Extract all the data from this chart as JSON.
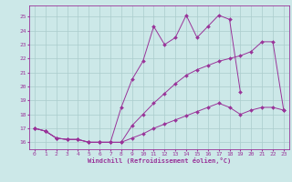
{
  "background_color": "#cce8e8",
  "grid_color": "#aacccc",
  "line_color": "#993399",
  "xlim_min": -0.5,
  "xlim_max": 23.5,
  "ylim_min": 15.5,
  "ylim_max": 25.8,
  "yticks": [
    16,
    17,
    18,
    19,
    20,
    21,
    22,
    23,
    24,
    25
  ],
  "xticks": [
    0,
    1,
    2,
    3,
    4,
    5,
    6,
    7,
    8,
    9,
    10,
    11,
    12,
    13,
    14,
    15,
    16,
    17,
    18,
    19,
    20,
    21,
    22,
    23
  ],
  "xlabel": "Windchill (Refroidissement éolien,°C)",
  "series": [
    {
      "x": [
        0,
        1,
        2,
        3,
        4,
        5,
        6,
        7,
        8,
        9,
        10,
        11,
        12,
        13,
        14,
        15,
        16,
        17,
        18,
        19,
        20,
        21,
        22,
        23
      ],
      "y": [
        17.0,
        16.8,
        16.3,
        16.2,
        16.2,
        16.0,
        16.0,
        16.0,
        16.0,
        16.3,
        16.6,
        17.0,
        17.3,
        17.6,
        17.9,
        18.2,
        18.5,
        18.8,
        18.5,
        18.0,
        18.3,
        18.5,
        18.5,
        18.3
      ]
    },
    {
      "x": [
        0,
        1,
        2,
        3,
        4,
        5,
        6,
        7,
        8,
        9,
        10,
        11,
        12,
        13,
        14,
        15,
        16,
        17,
        18,
        19,
        20,
        21,
        22,
        23
      ],
      "y": [
        17.0,
        16.8,
        16.3,
        16.2,
        16.2,
        16.0,
        16.0,
        16.0,
        16.0,
        17.2,
        18.0,
        18.8,
        19.5,
        20.2,
        20.8,
        21.2,
        21.5,
        21.8,
        22.0,
        22.2,
        22.5,
        23.2,
        23.2,
        18.3
      ]
    },
    {
      "x": [
        0,
        1,
        2,
        3,
        4,
        5,
        6,
        7,
        8,
        9,
        10,
        11,
        12,
        13,
        14,
        15,
        16,
        17,
        18,
        19,
        20,
        21,
        22,
        23
      ],
      "y": [
        17.0,
        16.8,
        16.3,
        16.2,
        16.2,
        16.0,
        16.0,
        16.0,
        18.5,
        20.5,
        21.8,
        24.3,
        23.0,
        23.5,
        25.1,
        23.5,
        24.3,
        25.1,
        24.8,
        19.6,
        null,
        null,
        null,
        null
      ]
    }
  ]
}
